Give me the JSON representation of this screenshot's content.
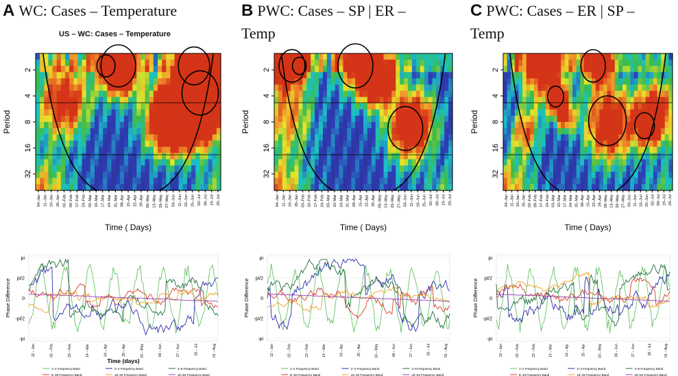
{
  "panels": [
    {
      "letter": "A",
      "title": "WC: Cases – Temperature",
      "title_cont": "",
      "subtitle": "US – WC: Cases – Temperature"
    },
    {
      "letter": "B",
      "title": "PWC:  Cases  –  SP  |  ER  –",
      "title_cont": "Temp",
      "subtitle": ""
    },
    {
      "letter": "C",
      "title": "PWC:  Cases  –  ER  |  SP  –",
      "title_cont": "Temp",
      "subtitle": ""
    }
  ],
  "chart_data": [
    {
      "type": "heatmap",
      "title": "US – WC: Cases – Temperature",
      "xlabel": "Time ( Days)",
      "ylabel": "Period",
      "yticks": [
        "2",
        "4",
        "8",
        "16",
        "32"
      ],
      "xticks": [
        "04–Jan",
        "11–Jan",
        "19–Jan",
        "26–Jan",
        "02–Feb",
        "09–Feb",
        "17–Feb",
        "24–Feb",
        "02–Mar",
        "10–Mar",
        "17–Mar",
        "24–Mar",
        "31–Mar",
        "08–Apr",
        "15–Apr",
        "22–Apr",
        "29–Apr",
        "06–May",
        "13–May",
        "20–May",
        "27–May",
        "03–Jun",
        "11–Jun",
        "18–Jun",
        "25–Jun",
        "02–Jul",
        "09–Jul",
        "19–Jul",
        "26–Jul"
      ],
      "colors": {
        "low": "#2b2d8f",
        "mid": "#19c2c8",
        "high": "#d43417"
      }
    },
    {
      "type": "heatmap",
      "title": "PWC: Cases – SP | ER – Temp",
      "xlabel": "Time ( Days)",
      "ylabel": "Period",
      "yticks": [
        "2",
        "4",
        "8",
        "16",
        "32"
      ],
      "xticks": [
        "04–Jan",
        "11–Jan",
        "19–Jan",
        "26–Jan",
        "03–Feb",
        "10–Feb",
        "17–Feb",
        "24–Feb",
        "03–Mar",
        "10–Mar",
        "24–Mar",
        "31–Mar",
        "08–Apr",
        "15–Apr",
        "22–Apr",
        "29–Apr",
        "06–May",
        "13–May",
        "20–May",
        "27–May",
        "03–Jun",
        "11–Jun",
        "18–Jun",
        "25–Jun",
        "02–Jul",
        "09–Jul",
        "19–Jul",
        "29–Jul"
      ],
      "colors": {
        "low": "#2b2d8f",
        "mid": "#19c2c8",
        "high": "#d43417"
      }
    },
    {
      "type": "heatmap",
      "title": "PWC: Cases – ER | SP – Temp",
      "xlabel": "Time ( Days)",
      "ylabel": "Period",
      "yticks": [
        "2",
        "4",
        "8",
        "16",
        "32"
      ],
      "xticks": [
        "04–Jan",
        "11–Jan",
        "19–Jan",
        "26–Jan",
        "02–Feb",
        "09–Feb",
        "17–Feb",
        "24–Feb",
        "03–Mar",
        "10–Mar",
        "17–Mar",
        "24–Mar",
        "31–Mar",
        "08–Apr",
        "15–Apr",
        "22–Apr",
        "29–Apr",
        "06–May",
        "13–May",
        "20–May",
        "27–May",
        "03–Jun",
        "11–Jun",
        "18–Jun",
        "25–Jun",
        "02–Jul",
        "09–Jul",
        "19–Jul",
        "26–Jul"
      ],
      "colors": {
        "low": "#2b2d8f",
        "mid": "#19c2c8",
        "high": "#d43417"
      }
    },
    {
      "type": "line",
      "xlabel": "Time (days)",
      "ylabel": "Phase Difference",
      "yticks": [
        "pi",
        "pi/2",
        "0",
        "-pi/2",
        "-pi"
      ],
      "ylim": [
        -3.1416,
        3.1416
      ],
      "xticks": [
        "12 – Jan",
        "02 – Feb",
        "23 – Feb",
        "14 – Mar",
        "04 – Apr",
        "25 – Apr",
        "16 – May",
        "06 – Jun",
        "27 – Jun",
        "18 – Jul",
        "01 – Aug"
      ],
      "series": [
        {
          "name": "1–2 Frequency Band",
          "color": "#66c266",
          "seed": 11
        },
        {
          "name": "2–4 Frequency Band",
          "color": "#2a2aa8",
          "seed": 23
        },
        {
          "name": "4–8 Frequency Band",
          "color": "#1e6b3a",
          "seed": 37
        },
        {
          "name": "8–16 Frequency Band",
          "color": "#d43a2a",
          "seed": 41
        },
        {
          "name": "16–32 Frequency Band",
          "color": "#f0a020",
          "seed": 53
        },
        {
          "name": "32–64 Frequency Band",
          "color": "#9b3fb0",
          "seed": 67
        }
      ]
    },
    {
      "type": "line",
      "xlabel": "",
      "ylabel": "Phase Difference",
      "yticks": [
        "pi",
        "pi/2",
        "0",
        "-pi/2",
        "-pi"
      ],
      "ylim": [
        -3.1416,
        3.1416
      ],
      "xticks": [
        "12 – Jan",
        "02 – Feb",
        "23 – Feb",
        "14 – Mar",
        "04 – Apr",
        "25 – Apr",
        "16 – May",
        "06 – Jun",
        "27 – Jun",
        "18 – Jul",
        "01 – Aug"
      ],
      "series": [
        {
          "name": "1–2 Frequency Band",
          "color": "#66c266",
          "seed": 13
        },
        {
          "name": "2–4 Frequency Band",
          "color": "#2a2aa8",
          "seed": 29
        },
        {
          "name": "4–8 Frequency Band",
          "color": "#1e6b3a",
          "seed": 31
        },
        {
          "name": "8–16 Frequency Band",
          "color": "#d43a2a",
          "seed": 43
        },
        {
          "name": "16–32 Frequency Band",
          "color": "#f0a020",
          "seed": 59
        },
        {
          "name": "32–64 Frequency Band",
          "color": "#9b3fb0",
          "seed": 71
        }
      ]
    },
    {
      "type": "line",
      "xlabel": "",
      "ylabel": "Phase Difference",
      "yticks": [
        "pi",
        "pi/2",
        "0",
        "-pi/2",
        "-pi"
      ],
      "ylim": [
        -3.1416,
        3.1416
      ],
      "xticks": [
        "12 – Jan",
        "02 – Feb",
        "23 – Feb",
        "14 – Mar",
        "04 – Apr",
        "25 – Apr",
        "16 – May",
        "06 – Jun",
        "27 – Jun",
        "18 – Jul",
        "01 – Aug"
      ],
      "series": [
        {
          "name": "1–2 Frequency Band",
          "color": "#66c266",
          "seed": 17
        },
        {
          "name": "2–4 Frequency Band",
          "color": "#2a2aa8",
          "seed": 19
        },
        {
          "name": "4–8 Frequency Band",
          "color": "#1e6b3a",
          "seed": 47
        },
        {
          "name": "8–16 Frequency Band",
          "color": "#d43a2a",
          "seed": 61
        },
        {
          "name": "16–32 Frequency Band",
          "color": "#f0a020",
          "seed": 73
        },
        {
          "name": "32–64 Frequency Band",
          "color": "#9b3fb0",
          "seed": 79
        }
      ]
    }
  ]
}
